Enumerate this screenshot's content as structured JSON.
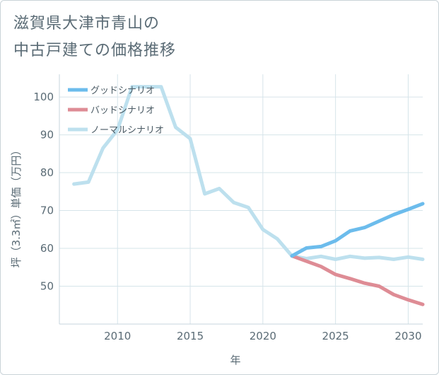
{
  "title_lines": [
    "滋賀県大津市青山の",
    "中古戸建ての価格推移"
  ],
  "colors": {
    "good": "#6cbcec",
    "bad": "#de8c95",
    "normal": "#bde0ee",
    "grid": "#d6e4ea",
    "text": "#5a6b75"
  },
  "chart_data": {
    "type": "line",
    "xlabel": "年",
    "ylabel": "坪（3.3㎡）単価（万円）",
    "xlim": [
      2006,
      2031
    ],
    "ylim": [
      40,
      106
    ],
    "x_ticks": [
      2010,
      2015,
      2020,
      2025,
      2030
    ],
    "y_ticks": [
      50,
      60,
      70,
      80,
      90,
      100
    ],
    "grid": true,
    "legend_position": "top-left",
    "series": [
      {
        "name": "グッドシナリオ",
        "color_key": "good",
        "x": [
          2022,
          2023,
          2024,
          2025,
          2026,
          2027,
          2028,
          2029,
          2030,
          2031
        ],
        "y": [
          58,
          60.1,
          60.5,
          62,
          64.6,
          65.5,
          67.2,
          68.9,
          70.3,
          71.8
        ]
      },
      {
        "name": "バッドシナリオ",
        "color_key": "bad",
        "x": [
          2022,
          2023,
          2024,
          2025,
          2026,
          2027,
          2028,
          2029,
          2030,
          2031
        ],
        "y": [
          58,
          56.6,
          55.2,
          53.1,
          52,
          50.8,
          50,
          47.8,
          46.4,
          45.2
        ]
      },
      {
        "name": "ノーマルシナリオ",
        "color_key": "normal",
        "x": [
          2007,
          2008,
          2009,
          2010,
          2011,
          2012,
          2013,
          2014,
          2015,
          2016,
          2017,
          2018,
          2019,
          2020,
          2021,
          2022,
          2023,
          2024,
          2025,
          2026,
          2027,
          2028,
          2029,
          2030,
          2031
        ],
        "y": [
          77,
          77.5,
          86.5,
          91.3,
          102.7,
          102.7,
          102.7,
          92,
          89,
          74.4,
          75.8,
          72.1,
          70.8,
          65,
          62.5,
          58,
          57.3,
          57.9,
          57.1,
          57.9,
          57.4,
          57.6,
          57.1,
          57.7,
          57.1
        ]
      }
    ]
  }
}
